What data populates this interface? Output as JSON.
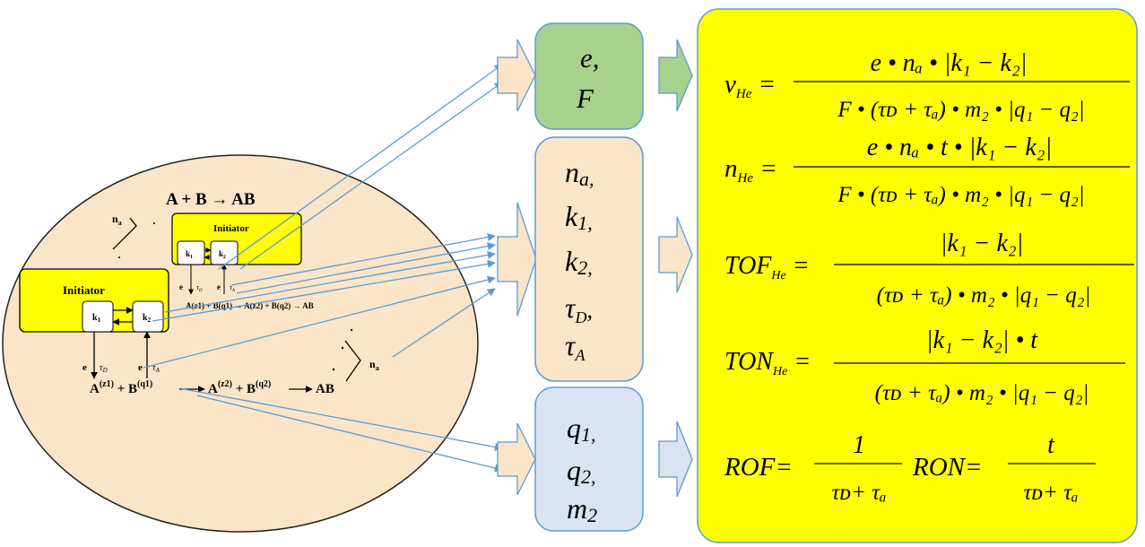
{
  "reaction": {
    "overall": "A + B → AB",
    "n_a_label": "n",
    "n_a_sub": "a",
    "initiator_label": "Initiator",
    "k1_label": "k",
    "k1_sub": "1",
    "k2_label": "k",
    "k2_sub": "2",
    "e_label": "e",
    "tau_d": "τ",
    "tau_d_sub": "D",
    "tau_a": "τ",
    "tau_a_sub": "A",
    "step_small": "A(z1) + B(q1) → A(z2) + B(q2) → AB",
    "step_large": {
      "a1": "A",
      "z1": "(z1)",
      "plus1": " + B",
      "q1": "(q1)",
      "a2": "A",
      "z2": "(z2)",
      "plus2": " + B",
      "q2": "(q2)",
      "ab": "AB"
    }
  },
  "boxes": {
    "green": {
      "line1": "e,",
      "line2": "F",
      "color": "#a9d18e"
    },
    "peach": {
      "n": "n",
      "n_sub": "a,",
      "k1": "k",
      "k1_sub": "1,",
      "k2": "k",
      "k2_sub": "2,",
      "tauD": "τ",
      "tauD_sub": "D",
      "tauD_comma": ",",
      "tauA": "τ",
      "tauA_sub": "A",
      "color": "#fbe5c8"
    },
    "blue": {
      "q1": "q",
      "q1_sub": "1,",
      "q2": "q",
      "q2_sub": "2,",
      "m2": "m",
      "m2_sub": "2",
      "color": "#dae3f3"
    }
  },
  "formulas": {
    "bg_color": "#ffff00",
    "v": {
      "lhs": "v",
      "lhs_sub": "He",
      "num": "e • nₐ • |k₁ − k₂|",
      "den": "F • (τᴅ + τₐ) • m₂ • |q₁ − q₂|"
    },
    "n": {
      "lhs": "n",
      "lhs_sub": "He",
      "num": "e • nₐ • t • |k₁ − k₂|",
      "den": "F • (τᴅ + τₐ) • m₂ • |q₁ − q₂|"
    },
    "tof": {
      "lhs": "TOF",
      "lhs_sub": "He",
      "num": "|k₁ − k₂|",
      "den": "(τᴅ + τₐ) • m₂ • |q₁ − q₂|"
    },
    "ton": {
      "lhs": "TON",
      "lhs_sub": "He",
      "num": "|k₁ − k₂| • t",
      "den": "(τᴅ + τₐ) • m₂ • |q₁ − q₂|"
    },
    "rof": {
      "lhs": "ROF",
      "num": "1",
      "den": "τᴅ+ τₐ"
    },
    "ron": {
      "lhs": "RON",
      "num": "t",
      "den": "τᴅ+ τₐ"
    }
  }
}
